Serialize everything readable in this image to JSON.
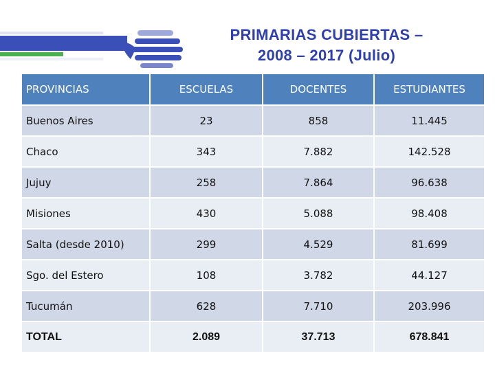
{
  "title": {
    "line1": "PRIMARIAS CUBIERTAS –",
    "line2": "2008 – 2017 (Julio)"
  },
  "colors": {
    "title": "#2f3fae",
    "header_bg": "#4f81bd",
    "row_odd": "#d0d8e8",
    "row_even": "#e9edf4",
    "logo_blue": "#3b4fb8",
    "logo_green": "#4caf50"
  },
  "table": {
    "headers": [
      "PROVINCIAS",
      "ESCUELAS",
      "DOCENTES",
      "ESTUDIANTES"
    ],
    "rows": [
      [
        "Buenos Aires",
        "23",
        "858",
        "11.445"
      ],
      [
        "Chaco",
        "343",
        "7.882",
        "142.528"
      ],
      [
        "Jujuy",
        "258",
        "7.864",
        "96.638"
      ],
      [
        "Misiones",
        "430",
        "5.088",
        "98.408"
      ],
      [
        "Salta (desde 2010)",
        "299",
        "4.529",
        "81.699"
      ],
      [
        "Sgo. del Estero",
        "108",
        "3.782",
        "44.127"
      ],
      [
        "Tucumán",
        "628",
        "7.710",
        "203.996"
      ],
      [
        "TOTAL",
        "2.089",
        "37.713",
        "678.841"
      ]
    ]
  }
}
